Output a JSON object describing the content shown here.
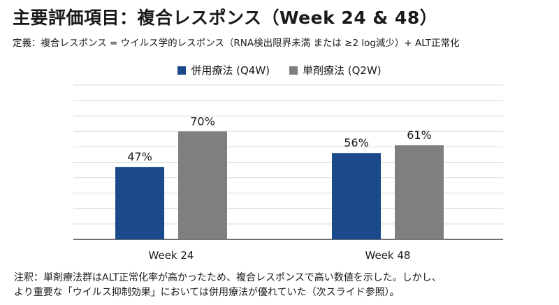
{
  "header": {
    "title": "主要評価項目：複合レスポンス（Week 24 & 48）",
    "subtitle": "定義：複合レスポンス = ウイルス学的レスポンス（RNA検出限界未満 または ≥2 log減少）+ ALT正常化"
  },
  "colors": {
    "series1": "#1b4a8a",
    "series2": "#7f7f7f",
    "grid": "#d9d9d9",
    "axis": "#444444"
  },
  "chart_data": {
    "type": "bar",
    "categories": [
      "Week 24",
      "Week 48"
    ],
    "series": [
      {
        "name": "併用療法 (Q4W)",
        "values": [
          47,
          56
        ],
        "labels": [
          "47%",
          "56%"
        ]
      },
      {
        "name": "単剤療法 (Q2W)",
        "values": [
          70,
          61
        ],
        "labels": [
          "70%",
          "61%"
        ]
      }
    ],
    "ylim": [
      0,
      100
    ],
    "grid": true,
    "legend": "top-center",
    "title": "",
    "xlabel": "",
    "ylabel": ""
  },
  "footnote": {
    "line1": "注釈：単剤療法群はALT正常化率が高かったため、複合レスポンスで高い数値を示した。しかし、",
    "line2": "より重要な「ウイルス抑制効果」においては併用療法が優れていた（次スライド参照）。"
  }
}
